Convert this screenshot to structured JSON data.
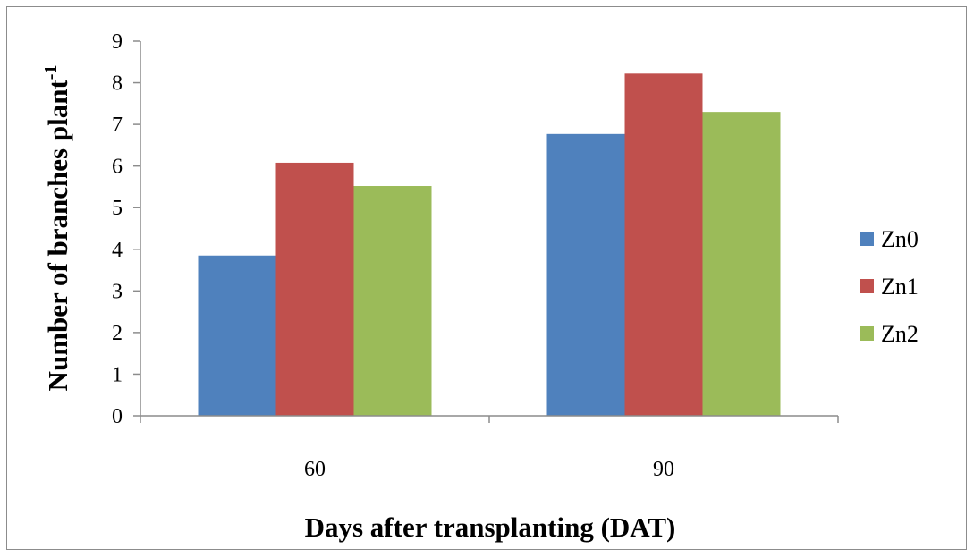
{
  "chart_data": {
    "type": "bar",
    "categories": [
      "60",
      "90"
    ],
    "series": [
      {
        "name": "Zn0",
        "color": "#4f81bd",
        "values": [
          3.85,
          6.77
        ]
      },
      {
        "name": "Zn1",
        "color": "#c0504d",
        "values": [
          6.08,
          8.22
        ]
      },
      {
        "name": "Zn2",
        "color": "#9bbb59",
        "values": [
          5.52,
          7.3
        ]
      }
    ],
    "title": "",
    "xlabel": "Days after transplanting (DAT)",
    "ylabel": "Number of branches plant",
    "ylabel_superscript": "-1",
    "ylim": [
      0,
      9
    ],
    "yticks": [
      "0",
      "1",
      "2",
      "3",
      "4",
      "5",
      "6",
      "7",
      "8",
      "9"
    ],
    "grid": false,
    "legend_position": "right"
  }
}
